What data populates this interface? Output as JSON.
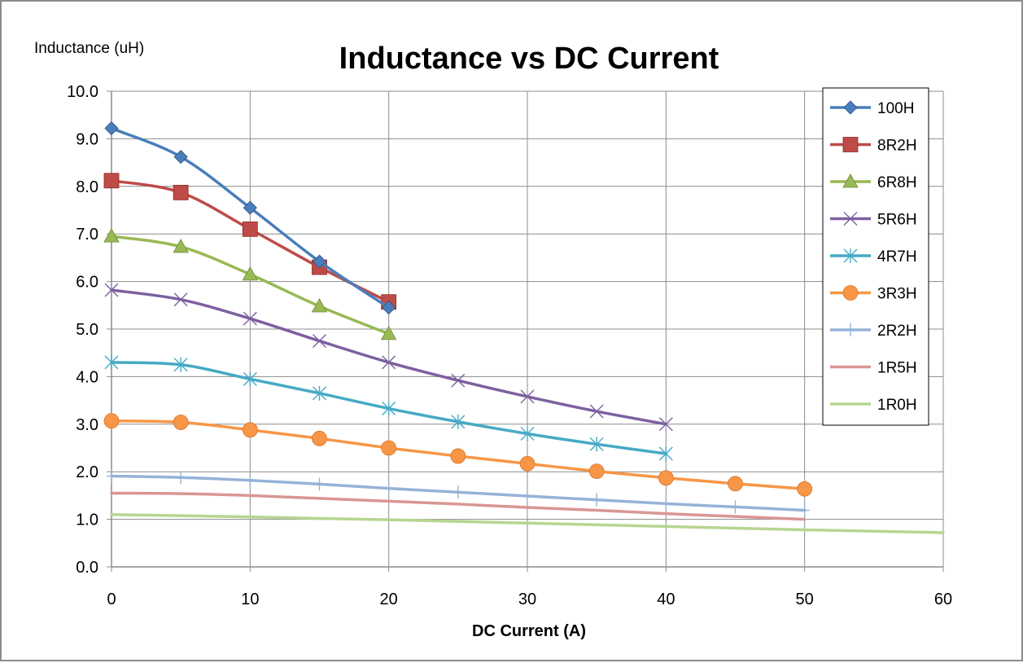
{
  "chart_data": {
    "type": "line",
    "title": "Inductance vs DC Current",
    "xlabel": "DC Current (A)",
    "ylabel": "Inductance (uH)",
    "xlim": [
      0,
      60
    ],
    "ylim": [
      0,
      10
    ],
    "x_ticks": [
      "0",
      "10",
      "20",
      "30",
      "40",
      "50",
      "60"
    ],
    "y_ticks": [
      "0.0",
      "1.0",
      "2.0",
      "3.0",
      "4.0",
      "5.0",
      "6.0",
      "7.0",
      "8.0",
      "9.0",
      "10.0"
    ],
    "grid": true,
    "legend_position": "right",
    "series": [
      {
        "name": "100H",
        "color": "#4a7ebb",
        "marker": "diamond",
        "x": [
          0,
          5,
          10,
          15,
          20
        ],
        "y": [
          9.22,
          8.62,
          7.55,
          6.42,
          5.45
        ]
      },
      {
        "name": "8R2H",
        "color": "#be4b48",
        "marker": "square",
        "x": [
          0,
          5,
          10,
          15,
          20
        ],
        "y": [
          8.12,
          7.87,
          7.1,
          6.3,
          5.57
        ]
      },
      {
        "name": "6R8H",
        "color": "#98b954",
        "marker": "triangle",
        "x": [
          0,
          5,
          10,
          15,
          20
        ],
        "y": [
          6.95,
          6.73,
          6.15,
          5.48,
          4.9
        ]
      },
      {
        "name": "5R6H",
        "color": "#7d60a0",
        "marker": "x",
        "x": [
          0,
          5,
          10,
          15,
          20,
          25,
          30,
          35,
          40
        ],
        "y": [
          5.82,
          5.62,
          5.22,
          4.75,
          4.3,
          3.92,
          3.58,
          3.27,
          3.0
        ]
      },
      {
        "name": "4R7H",
        "color": "#46aac5",
        "marker": "star",
        "x": [
          0,
          5,
          10,
          15,
          20,
          25,
          30,
          35,
          40
        ],
        "y": [
          4.3,
          4.25,
          3.95,
          3.65,
          3.33,
          3.05,
          2.8,
          2.58,
          2.38
        ]
      },
      {
        "name": "3R3H",
        "color": "#f79646",
        "marker": "circle",
        "x": [
          0,
          5,
          10,
          15,
          20,
          25,
          30,
          35,
          40,
          45,
          50
        ],
        "y": [
          3.07,
          3.04,
          2.88,
          2.7,
          2.5,
          2.33,
          2.17,
          2.01,
          1.87,
          1.75,
          1.64
        ]
      },
      {
        "name": "2R2H",
        "color": "#95b3d7",
        "marker": "plus",
        "x": [
          0,
          5,
          10,
          15,
          20,
          25,
          30,
          35,
          40,
          45,
          50
        ],
        "y": [
          1.91,
          1.88,
          1.82,
          1.74,
          1.65,
          1.57,
          1.49,
          1.41,
          1.33,
          1.26,
          1.19
        ]
      },
      {
        "name": "1R5H",
        "color": "#d99694",
        "marker": "none",
        "x": [
          0,
          5,
          10,
          15,
          20,
          25,
          30,
          35,
          40,
          45,
          50
        ],
        "y": [
          1.55,
          1.54,
          1.5,
          1.44,
          1.38,
          1.32,
          1.25,
          1.19,
          1.12,
          1.06,
          1.0
        ]
      },
      {
        "name": "1R0H",
        "color": "#b7d591",
        "marker": "none",
        "x": [
          0,
          10,
          20,
          30,
          40,
          50,
          60
        ],
        "y": [
          1.1,
          1.05,
          0.99,
          0.92,
          0.85,
          0.78,
          0.72
        ]
      }
    ]
  }
}
